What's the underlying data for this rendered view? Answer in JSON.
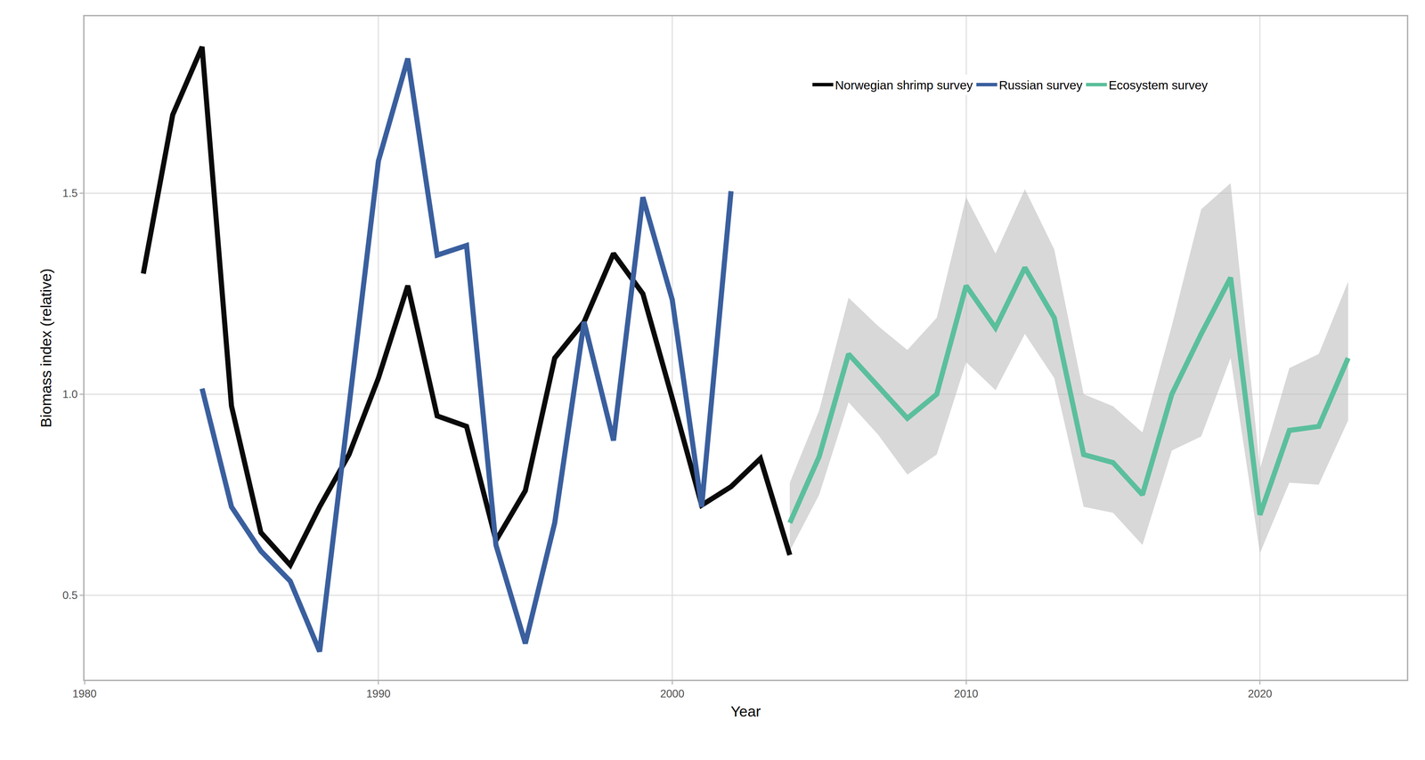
{
  "chart_data": {
    "type": "line",
    "x_label": "Year",
    "y_label": "Biomass index (relative)",
    "x": [
      1982,
      1983,
      1984,
      1985,
      1986,
      1987,
      1988,
      1989,
      1990,
      1991,
      1992,
      1993,
      1994,
      1995,
      1996,
      1997,
      1998,
      1999,
      2000,
      2001,
      2002,
      2003,
      2004,
      2005,
      2006,
      2007,
      2008,
      2009,
      2010,
      2011,
      2012,
      2013,
      2014,
      2015,
      2016,
      2017,
      2018,
      2019,
      2020,
      2021,
      2022,
      2023
    ],
    "series": [
      {
        "name": "Norwegian shrimp survey",
        "color": "#0a0a0a",
        "values": [
          1.3,
          1.695,
          1.864,
          0.971,
          0.656,
          0.575,
          0.72,
          0.85,
          1.04,
          1.27,
          0.946,
          0.92,
          0.636,
          0.76,
          1.09,
          1.18,
          1.35,
          1.25,
          0.99,
          0.724,
          0.77,
          0.84,
          0.6,
          null,
          null,
          null,
          null,
          null,
          null,
          null,
          null,
          null,
          null,
          null,
          null,
          null,
          null,
          null,
          null,
          null,
          null,
          null
        ]
      },
      {
        "name": "Russian survey",
        "color": "#3a5f9e",
        "values": [
          null,
          null,
          1.014,
          0.72,
          0.61,
          0.535,
          0.36,
          0.96,
          1.58,
          1.835,
          1.346,
          1.37,
          0.625,
          0.38,
          0.68,
          1.18,
          0.885,
          1.49,
          1.235,
          0.72,
          1.505,
          null,
          null,
          null,
          null,
          null,
          null,
          null,
          null,
          null,
          null,
          null,
          null,
          null,
          null,
          null,
          null,
          null,
          null,
          null,
          null,
          null
        ]
      },
      {
        "name": "Ecosystem survey",
        "color": "#5bbf9c",
        "values": [
          null,
          null,
          null,
          null,
          null,
          null,
          null,
          null,
          null,
          null,
          null,
          null,
          null,
          null,
          null,
          null,
          null,
          null,
          null,
          null,
          null,
          null,
          0.68,
          0.845,
          1.1,
          1.02,
          0.94,
          1.0,
          1.27,
          1.165,
          1.315,
          1.19,
          0.85,
          0.83,
          0.75,
          1.0,
          1.15,
          1.29,
          0.7,
          0.91,
          0.92,
          1.09
        ],
        "lower": [
          null,
          null,
          null,
          null,
          null,
          null,
          null,
          null,
          null,
          null,
          null,
          null,
          null,
          null,
          null,
          null,
          null,
          null,
          null,
          null,
          null,
          null,
          0.61,
          0.75,
          0.98,
          0.9,
          0.8,
          0.85,
          1.08,
          1.01,
          1.15,
          1.04,
          0.72,
          0.705,
          0.625,
          0.86,
          0.895,
          1.09,
          0.605,
          0.78,
          0.775,
          0.935
        ],
        "upper": [
          null,
          null,
          null,
          null,
          null,
          null,
          null,
          null,
          null,
          null,
          null,
          null,
          null,
          null,
          null,
          null,
          null,
          null,
          null,
          null,
          null,
          null,
          0.78,
          0.96,
          1.24,
          1.17,
          1.11,
          1.19,
          1.49,
          1.35,
          1.51,
          1.36,
          1.0,
          0.97,
          0.905,
          1.17,
          1.46,
          1.525,
          0.815,
          1.065,
          1.1,
          1.28
        ]
      }
    ],
    "xlim": [
      1980,
      2025
    ],
    "xticks": [
      1980,
      1990,
      2000,
      2010,
      2020
    ],
    "ylim": [
      0.29,
      1.94
    ],
    "yticks": [
      {
        "value": 0.5,
        "label": "0.5"
      },
      {
        "value": 1.0,
        "label": "1.0"
      },
      {
        "value": 1.5,
        "label": "1.5"
      }
    ],
    "grid": true,
    "legend": "top"
  }
}
